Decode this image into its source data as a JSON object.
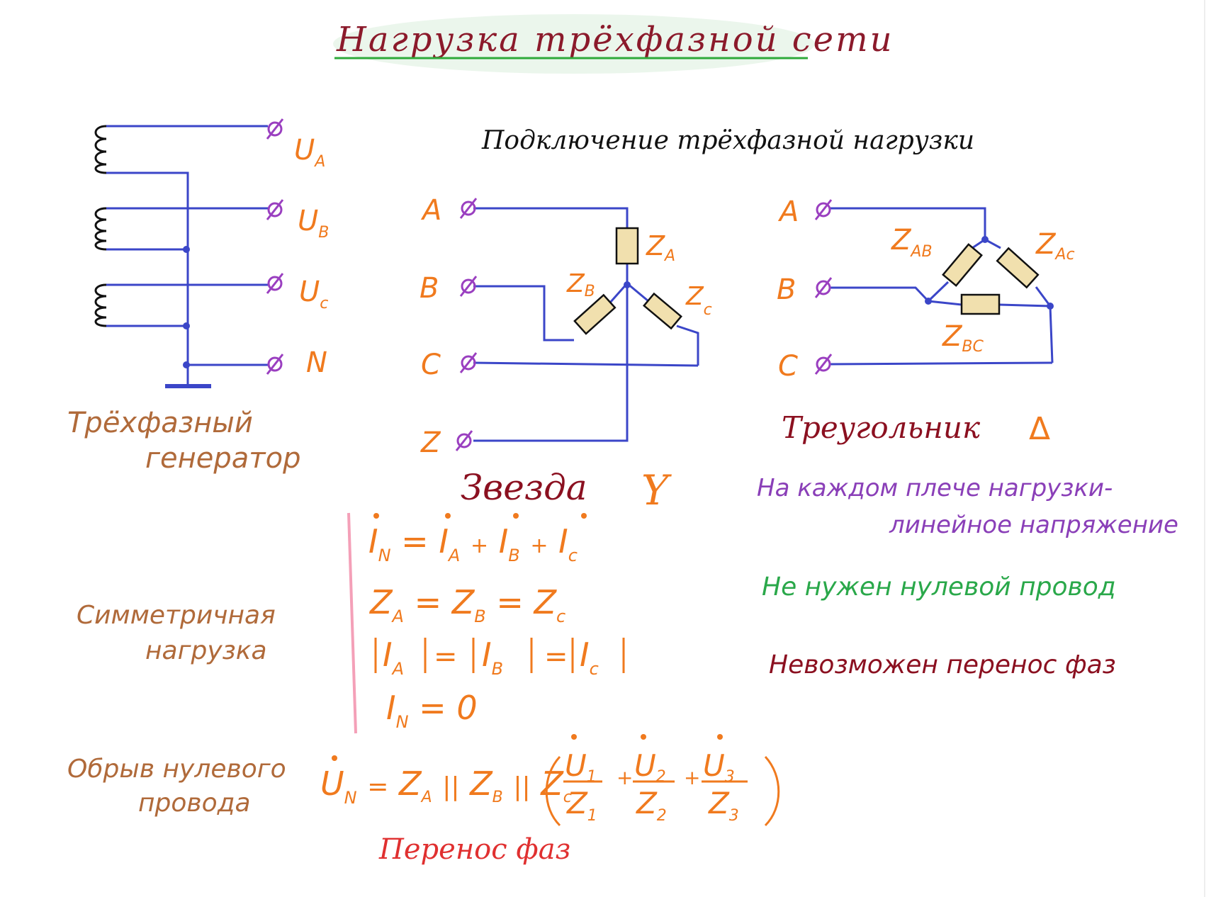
{
  "title": "Нагрузка трёхфазной сети",
  "subtitle": "Подключение трёхфазной нагрузки",
  "generator": {
    "label_line1": "Трёхфазный",
    "label_line2": "генератор",
    "terminals": [
      "U",
      "U",
      "U",
      "N"
    ],
    "terminal_subs": [
      "A",
      "B",
      "c",
      ""
    ]
  },
  "star": {
    "terminals": [
      "A",
      "B",
      "C",
      "Z"
    ],
    "impedances": [
      {
        "main": "Z",
        "sub": "A"
      },
      {
        "main": "Z",
        "sub": "B"
      },
      {
        "main": "Z",
        "sub": "c"
      }
    ],
    "label": "Звезда",
    "symbol": "Y"
  },
  "delta": {
    "terminals": [
      "A",
      "B",
      "C"
    ],
    "impedances": [
      {
        "main": "Z",
        "sub": "AB"
      },
      {
        "main": "Z",
        "sub": "Ac"
      },
      {
        "main": "Z",
        "sub": "BC"
      }
    ],
    "label": "Треугольник",
    "symbol": "Δ"
  },
  "notes": {
    "line_voltage_1": "На каждом плече нагрузки-",
    "line_voltage_2": "линейное напряжение",
    "no_neutral": "Не нужен нулевой провод",
    "no_phase_shift": "Невозможен перенос фаз",
    "symmetric_1": "Симметричная",
    "symmetric_2": "нагрузка",
    "break_1": "Обрыв нулевого",
    "break_2": "провода",
    "phase_shift": "Перенос фаз"
  },
  "formulas": {
    "f1": {
      "a": "I",
      "as": "N",
      "eq": "=",
      "b": "I",
      "bs": "A",
      "p1": "+",
      "c": "I",
      "cs": "B",
      "p2": "+",
      "d": "I",
      "ds": "c"
    },
    "f2": {
      "a": "Z",
      "as": "A",
      "eq1": "=",
      "b": "Z",
      "bs": "B",
      "eq2": "=",
      "c": "Z",
      "cs": "c"
    },
    "f3": {
      "a": "I",
      "as": "A",
      "eq1": "=",
      "b": "I",
      "bs": "B",
      "eq2": "=",
      "c": "I",
      "cs": "c"
    },
    "f4": {
      "a": "I",
      "as": "N",
      "eq": "=",
      "val": "0"
    },
    "f5": {
      "lhs": "U",
      "lhs_sub": "N",
      "eq": "=",
      "za": "Z",
      "za_sub": "A",
      "zb": "Z",
      "zb_sub": "B",
      "zc": "Z",
      "zc_sub": "c",
      "par": "||",
      "plus": "+",
      "num1": "U",
      "num1_sub": "1",
      "den1": "Z",
      "den1_sub": "1",
      "num2": "U",
      "num2_sub": "2",
      "den2": "Z",
      "den2_sub": "2",
      "num3": "U",
      "num3_sub": "3",
      "den3": "Z",
      "den3_sub": "3"
    }
  },
  "colors": {
    "title": "#8b1a2b",
    "title_underline": "#2eaa3a",
    "wire": "#3b46c8",
    "generator_coil": "#111111",
    "terminal": "#9a3fc0",
    "orange": "#f07a1e",
    "brown": "#b06a3a",
    "purple": "#8a3fb8",
    "green": "#2aa84a",
    "darkred": "#8b1020",
    "red": "#e03030",
    "resistor_fill": "#f1e0ae",
    "margin_line": "#f4a0b8"
  }
}
